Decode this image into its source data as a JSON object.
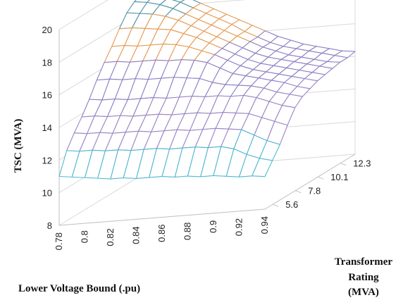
{
  "chart_data": {
    "type": "surface3d",
    "title": "",
    "xlabel": "Lower Voltage Bound (.pu)",
    "ylabel": [
      "Transformer",
      "Rating",
      "(MVA)"
    ],
    "zlabel": "TSC (MVA)",
    "x": [
      0.78,
      0.79,
      0.8,
      0.81,
      0.82,
      0.83,
      0.84,
      0.85,
      0.86,
      0.87,
      0.88,
      0.89,
      0.9,
      0.91,
      0.92,
      0.93,
      0.94
    ],
    "x_ticks": [
      "0.78",
      "0.8",
      "0.82",
      "0.84",
      "0.86",
      "0.88",
      "0.9",
      "0.92",
      "0.94"
    ],
    "y_ticks": [
      "5.6",
      "7.8",
      "10.1",
      "12.3"
    ],
    "z_ticks": [
      "8",
      "10",
      "12",
      "14",
      "16",
      "18",
      "20"
    ],
    "zlim": [
      8,
      20
    ],
    "band_colors": [
      {
        "range": [
          10,
          12
        ],
        "color": "#4fb8cf"
      },
      {
        "range": [
          12,
          14
        ],
        "color": "#9b86c6"
      },
      {
        "range": [
          14,
          16
        ],
        "color": "#8f80c4"
      },
      {
        "range": [
          16,
          18
        ],
        "color": "#e69a52"
      },
      {
        "range": [
          18,
          20
        ],
        "color": "#4f93a5"
      }
    ],
    "rows": [
      {
        "name": "5.6",
        "values": [
          11.0,
          10.9,
          10.8,
          10.7,
          10.6,
          10.6,
          10.5,
          10.5,
          10.5,
          10.4,
          10.4,
          10.3,
          10.3,
          10.2,
          10.1,
          10.1,
          10.0
        ]
      },
      {
        "name": "6.2",
        "values": [
          12.3,
          12.2,
          12.2,
          12.1,
          12.1,
          12.0,
          12.0,
          12.0,
          11.9,
          11.9,
          11.9,
          11.8,
          11.8,
          11.6,
          11.2,
          10.9,
          10.7
        ]
      },
      {
        "name": "6.7",
        "values": [
          13.1,
          13.0,
          13.0,
          12.9,
          12.9,
          12.9,
          12.8,
          12.8,
          12.8,
          12.7,
          12.7,
          12.7,
          12.6,
          12.5,
          12.1,
          11.7,
          11.4
        ]
      },
      {
        "name": "7.2",
        "values": [
          13.8,
          13.8,
          13.7,
          13.7,
          13.6,
          13.6,
          13.6,
          13.5,
          13.5,
          13.5,
          13.4,
          13.4,
          13.3,
          13.2,
          12.9,
          12.6,
          12.3
        ]
      },
      {
        "name": "7.8",
        "values": [
          14.6,
          14.5,
          14.5,
          14.4,
          14.4,
          14.4,
          14.3,
          14.3,
          14.3,
          14.2,
          14.2,
          14.1,
          14.1,
          13.9,
          13.6,
          13.3,
          13.1
        ]
      },
      {
        "name": "8.3",
        "values": [
          15.5,
          15.5,
          15.4,
          15.4,
          15.3,
          15.3,
          15.3,
          15.2,
          15.1,
          14.8,
          14.6,
          14.5,
          14.4,
          14.2,
          13.9,
          13.7,
          13.5
        ]
      },
      {
        "name": "8.9",
        "values": [
          16.3,
          16.3,
          16.2,
          16.2,
          16.2,
          16.1,
          16.1,
          16.0,
          15.8,
          15.4,
          15.0,
          14.8,
          14.6,
          14.4,
          14.2,
          13.9,
          13.7
        ]
      },
      {
        "name": "9.5",
        "values": [
          17.0,
          17.0,
          16.9,
          16.9,
          16.9,
          16.8,
          16.6,
          16.3,
          16.0,
          15.6,
          15.2,
          14.9,
          14.7,
          14.5,
          14.3,
          14.1,
          13.9
        ]
      },
      {
        "name": "10.1",
        "values": [
          17.8,
          17.8,
          17.7,
          17.6,
          17.5,
          17.2,
          16.9,
          16.5,
          16.1,
          15.7,
          15.3,
          15.0,
          14.8,
          14.6,
          14.4,
          14.2,
          14.0
        ]
      },
      {
        "name": "10.6",
        "values": [
          18.5,
          18.4,
          18.3,
          18.1,
          17.8,
          17.4,
          17.0,
          16.6,
          16.2,
          15.8,
          15.4,
          15.1,
          14.9,
          14.7,
          14.5,
          14.3,
          14.1
        ]
      },
      {
        "name": "11.2",
        "values": [
          18.9,
          18.8,
          18.6,
          18.3,
          17.9,
          17.5,
          17.1,
          16.7,
          16.3,
          15.9,
          15.5,
          15.2,
          14.9,
          14.7,
          14.5,
          14.3,
          14.2
        ]
      },
      {
        "name": "11.7",
        "values": [
          19.1,
          19.0,
          18.7,
          18.4,
          18.0,
          17.6,
          17.2,
          16.8,
          16.3,
          15.9,
          15.5,
          15.2,
          15.0,
          14.8,
          14.6,
          14.4,
          14.2
        ]
      },
      {
        "name": "12.3",
        "values": [
          19.2,
          19.1,
          18.8,
          18.4,
          18.0,
          17.6,
          17.2,
          16.8,
          16.4,
          16.0,
          15.6,
          15.3,
          15.0,
          14.8,
          14.6,
          14.4,
          14.3
        ]
      }
    ]
  }
}
